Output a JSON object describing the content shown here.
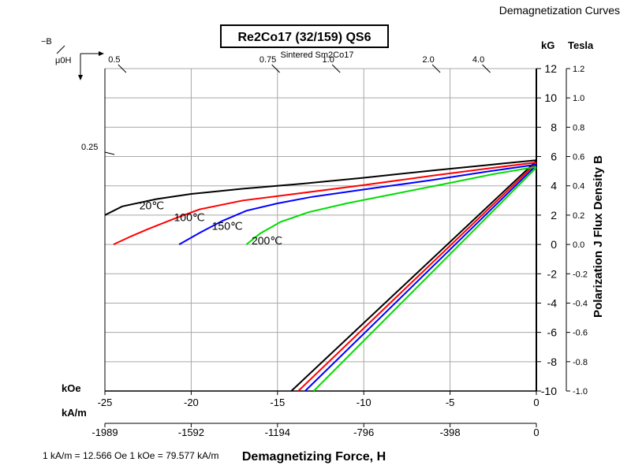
{
  "header": {
    "title": "Demagnetization Curves"
  },
  "chart_data": {
    "type": "line",
    "title": "Re2Co17 (32/159) QS6",
    "material_label": "Sintered Sm2Co17",
    "xlabel": "Demagnetizing Force, H",
    "ylabel": "Polarization J Flux Density B",
    "x_unit_koe": "kOe",
    "x_unit_kam": "kA/m",
    "y_unit_kg": "kG",
    "y_unit_tesla": "Tesla",
    "corner_label_b": "−B",
    "corner_label_h": "μ0H",
    "conversion_note": "1 kA/m = 12.566 Oe 1 kOe = 79.577 kA/m",
    "xlim": [
      -25,
      0
    ],
    "ylim": [
      -10,
      12
    ],
    "x_ticks_koe": [
      "-25",
      "-20",
      "-15",
      "-10",
      "-5",
      "0"
    ],
    "x_ticks_kam": [
      "-1989",
      "-1592",
      "-1194",
      "-796",
      "-398",
      "0"
    ],
    "y_ticks_kg": [
      "12",
      "10",
      "8",
      "6",
      "4",
      "2",
      "0",
      "-2",
      "-4",
      "-6",
      "-8",
      "-10"
    ],
    "y_ticks_tesla": [
      "1.2",
      "1.0",
      "0.8",
      "0.6",
      "0.4",
      "0.2",
      "0.0",
      "-0.2",
      "-0.4",
      "-0.6",
      "-0.8",
      "-1.0"
    ],
    "permeance_ticks": [
      {
        "label": "0.5",
        "x": -24.0,
        "y": 12
      },
      {
        "label": "0.75",
        "x": -15.1,
        "y": 12
      },
      {
        "label": "1.0",
        "x": -11.6,
        "y": 12
      },
      {
        "label": "2.0",
        "x": -5.8,
        "y": 12
      },
      {
        "label": "4.0",
        "x": -2.9,
        "y": 12
      },
      {
        "label": "0.25",
        "x": -25,
        "y": 6.3
      }
    ],
    "grid": true,
    "series": [
      {
        "name": "20℃",
        "color": "#000000",
        "label_at": [
          -23.0,
          2.4
        ],
        "J": [
          [
            -25,
            2.0
          ],
          [
            -24,
            2.6
          ],
          [
            -22,
            3.1
          ],
          [
            -20,
            3.45
          ],
          [
            -17,
            3.8
          ],
          [
            -14,
            4.1
          ],
          [
            -10,
            4.55
          ],
          [
            -6,
            5.05
          ],
          [
            -3,
            5.4
          ],
          [
            0,
            5.75
          ]
        ],
        "B": [
          [
            -14.2,
            -10
          ],
          [
            0,
            5.7
          ]
        ]
      },
      {
        "name": "100℃",
        "color": "#ff0000",
        "label_at": [
          -21.0,
          1.6
        ],
        "J": [
          [
            -24.5,
            0.0
          ],
          [
            -23.5,
            0.55
          ],
          [
            -22.5,
            1.05
          ],
          [
            -21,
            1.75
          ],
          [
            -19.5,
            2.4
          ],
          [
            -17,
            3.0
          ],
          [
            -14,
            3.45
          ],
          [
            -10,
            4.05
          ],
          [
            -6,
            4.7
          ],
          [
            -3,
            5.15
          ],
          [
            0,
            5.6
          ]
        ],
        "B": [
          [
            -13.8,
            -10
          ],
          [
            0,
            5.55
          ]
        ]
      },
      {
        "name": "150℃",
        "color": "#0000ff",
        "label_at": [
          -18.8,
          1.0
        ],
        "J": [
          [
            -20.7,
            0.0
          ],
          [
            -19.5,
            0.8
          ],
          [
            -18.2,
            1.6
          ],
          [
            -16.8,
            2.3
          ],
          [
            -15,
            2.8
          ],
          [
            -13,
            3.25
          ],
          [
            -10,
            3.75
          ],
          [
            -6,
            4.4
          ],
          [
            -3,
            4.95
          ],
          [
            0,
            5.45
          ]
        ],
        "B": [
          [
            -13.4,
            -10
          ],
          [
            0,
            5.4
          ]
        ]
      },
      {
        "name": "200℃",
        "color": "#00dd00",
        "label_at": [
          -16.5,
          0.0
        ],
        "J": [
          [
            -16.8,
            0.0
          ],
          [
            -16,
            0.75
          ],
          [
            -14.8,
            1.55
          ],
          [
            -13.2,
            2.2
          ],
          [
            -11,
            2.8
          ],
          [
            -8,
            3.5
          ],
          [
            -5,
            4.2
          ],
          [
            -2.5,
            4.8
          ],
          [
            0,
            5.3
          ]
        ],
        "B": [
          [
            -12.9,
            -10
          ],
          [
            0,
            5.25
          ]
        ]
      }
    ]
  }
}
